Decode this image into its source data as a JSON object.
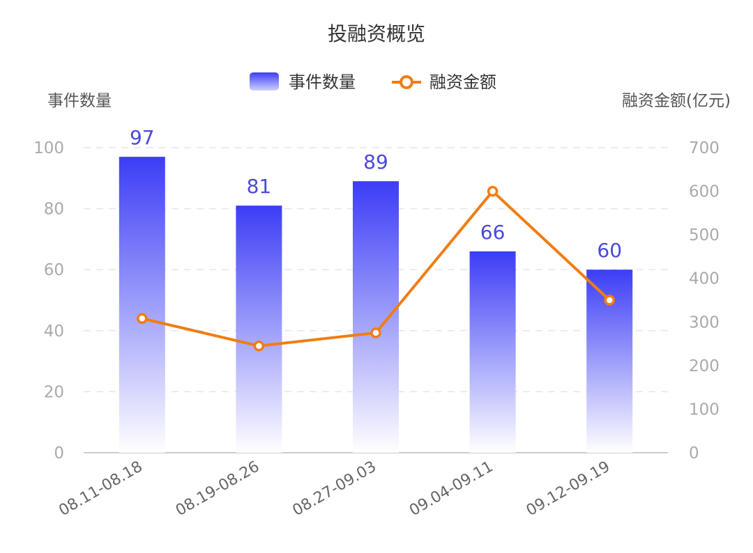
{
  "chart_data": {
    "type": "bar",
    "title": "投融资概览",
    "categories": [
      "08.11-08.18",
      "08.19-08.26",
      "08.27-09.03",
      "09.04-09.11",
      "09.12-09.19"
    ],
    "series": [
      {
        "name": "事件数量",
        "type": "bar",
        "axis": "left",
        "values": [
          97,
          81,
          89,
          66,
          60
        ]
      },
      {
        "name": "融资金额",
        "type": "line",
        "axis": "right",
        "values": [
          308,
          245,
          275,
          600,
          350
        ]
      }
    ],
    "ylabel": "事件数量",
    "y2label": "融资金额(亿元)",
    "ylim": [
      0,
      100
    ],
    "y2lim": [
      0,
      700
    ],
    "yticks": [
      0,
      20,
      40,
      60,
      80,
      100
    ],
    "y2ticks": [
      0,
      100,
      200,
      300,
      400,
      500,
      600,
      700
    ],
    "grid": true,
    "legend": "top-center",
    "colors": {
      "bar_top": "#3c3df5",
      "bar_bottom": "#ffffff",
      "line": "#f07d12",
      "bar_label": "#4a48d8"
    }
  }
}
